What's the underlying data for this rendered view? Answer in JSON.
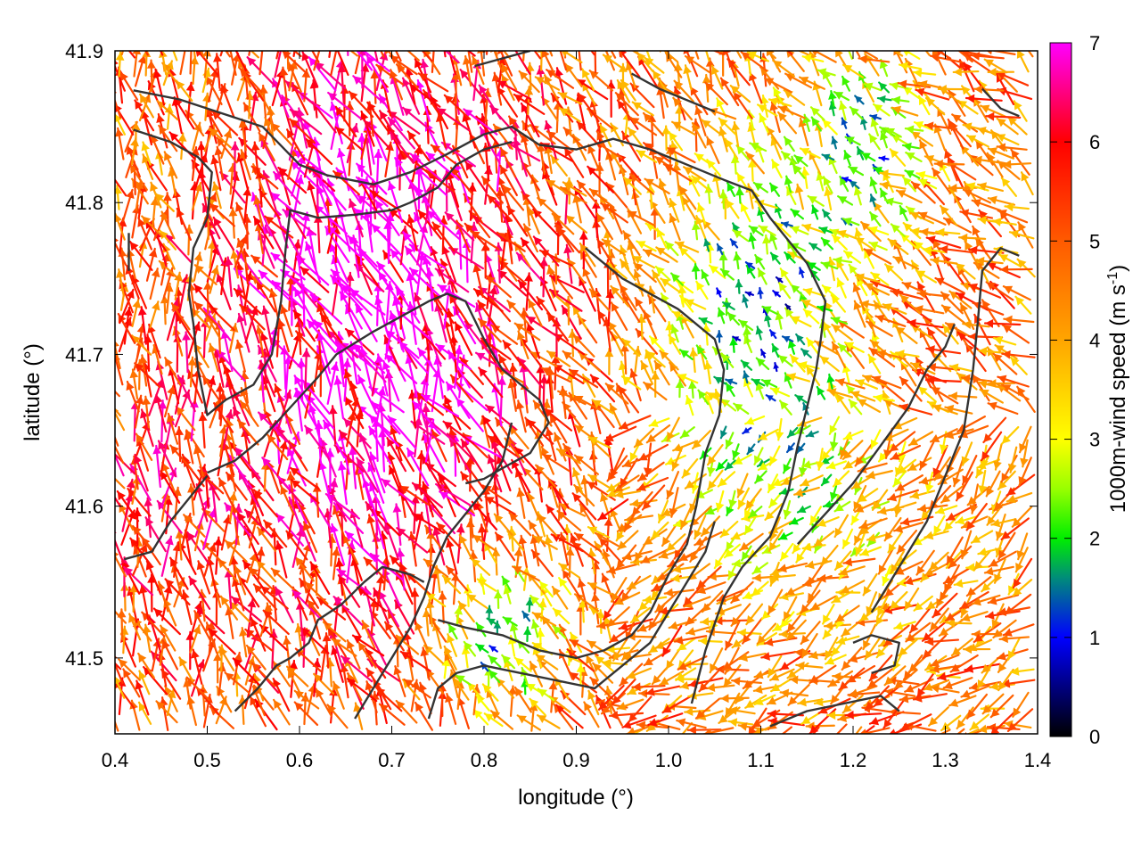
{
  "chart_data": {
    "type": "vector-field",
    "title": "",
    "xlabel": "longitude (°)",
    "ylabel": "latitude (°)",
    "xlim": [
      0.4,
      1.4
    ],
    "ylim": [
      41.45,
      41.9
    ],
    "x_ticks": [
      0.4,
      0.5,
      0.6,
      0.7,
      0.8,
      0.9,
      1.0,
      1.1,
      1.2,
      1.3,
      1.4
    ],
    "x_tick_labels": [
      "0.4",
      "0.5",
      "0.6",
      "0.7",
      "0.8",
      "0.9",
      "1.0",
      "1.1",
      "1.2",
      "1.3",
      "1.4"
    ],
    "y_ticks": [
      41.5,
      41.6,
      41.7,
      41.8,
      41.9
    ],
    "y_tick_labels": [
      "41.5",
      "41.6",
      "41.7",
      "41.8",
      "41.9"
    ],
    "colorbar": {
      "label_main": "1000m-wind speed (m s",
      "label_sup": "-1",
      "label_close": ")",
      "range": [
        0,
        7
      ],
      "ticks": [
        0,
        1,
        2,
        3,
        4,
        5,
        6,
        7
      ],
      "tick_labels": [
        "0",
        "1",
        "2",
        "3",
        "4",
        "5",
        "6",
        "7"
      ],
      "stops": [
        {
          "v": 0.0,
          "color": "#000000"
        },
        {
          "v": 1.0,
          "color": "#0000ff"
        },
        {
          "v": 1.6,
          "color": "#008c7a"
        },
        {
          "v": 2.0,
          "color": "#00ee00"
        },
        {
          "v": 2.5,
          "color": "#99ff00"
        },
        {
          "v": 3.0,
          "color": "#ffff00"
        },
        {
          "v": 4.0,
          "color": "#ffa500"
        },
        {
          "v": 5.0,
          "color": "#ff5a00"
        },
        {
          "v": 6.0,
          "color": "#ff0000"
        },
        {
          "v": 7.0,
          "color": "#ff00ff"
        }
      ]
    },
    "contour_color": "#333333",
    "contours": [
      [
        [
          0.42,
          41.874
        ],
        [
          0.47,
          41.868
        ],
        [
          0.52,
          41.858
        ],
        [
          0.56,
          41.85
        ],
        [
          0.6,
          41.825
        ],
        [
          0.63,
          41.818
        ],
        [
          0.68,
          41.812
        ],
        [
          0.72,
          41.82
        ],
        [
          0.76,
          41.832
        ],
        [
          0.8,
          41.845
        ],
        [
          0.83,
          41.85
        ],
        [
          0.86,
          41.838
        ],
        [
          0.9,
          41.835
        ],
        [
          0.94,
          41.842
        ],
        [
          0.98,
          41.835
        ],
        [
          1.02,
          41.825
        ],
        [
          1.06,
          41.815
        ],
        [
          1.09,
          41.808
        ],
        [
          1.11,
          41.79
        ],
        [
          1.13,
          41.775
        ],
        [
          1.15,
          41.76
        ],
        [
          1.17,
          41.735
        ],
        [
          1.165,
          41.71
        ],
        [
          1.16,
          41.69
        ],
        [
          1.15,
          41.665
        ],
        [
          1.14,
          41.64
        ],
        [
          1.13,
          41.61
        ],
        [
          1.11,
          41.58
        ],
        [
          1.08,
          41.56
        ],
        [
          1.06,
          41.54
        ],
        [
          1.04,
          41.505
        ],
        [
          1.025,
          41.47
        ]
      ],
      [
        [
          0.42,
          41.848
        ],
        [
          0.46,
          41.84
        ],
        [
          0.49,
          41.83
        ],
        [
          0.505,
          41.82
        ],
        [
          0.5,
          41.79
        ],
        [
          0.485,
          41.77
        ],
        [
          0.48,
          41.74
        ],
        [
          0.485,
          41.72
        ],
        [
          0.49,
          41.69
        ],
        [
          0.5,
          41.66
        ],
        [
          0.52,
          41.67
        ],
        [
          0.55,
          41.68
        ],
        [
          0.57,
          41.7
        ],
        [
          0.58,
          41.735
        ],
        [
          0.585,
          41.77
        ],
        [
          0.59,
          41.795
        ],
        [
          0.62,
          41.79
        ],
        [
          0.66,
          41.792
        ],
        [
          0.7,
          41.795
        ],
        [
          0.72,
          41.8
        ],
        [
          0.75,
          41.81
        ],
        [
          0.77,
          41.825
        ],
        [
          0.8,
          41.835
        ],
        [
          0.83,
          41.84
        ]
      ],
      [
        [
          0.5,
          41.622
        ],
        [
          0.53,
          41.63
        ],
        [
          0.56,
          41.645
        ],
        [
          0.59,
          41.665
        ],
        [
          0.62,
          41.685
        ],
        [
          0.64,
          41.7
        ],
        [
          0.68,
          41.715
        ],
        [
          0.71,
          41.725
        ],
        [
          0.74,
          41.735
        ],
        [
          0.76,
          41.74
        ],
        [
          0.78,
          41.735
        ],
        [
          0.8,
          41.71
        ],
        [
          0.82,
          41.69
        ],
        [
          0.84,
          41.68
        ],
        [
          0.86,
          41.67
        ],
        [
          0.87,
          41.655
        ],
        [
          0.85,
          41.635
        ],
        [
          0.82,
          41.625
        ],
        [
          0.8,
          41.618
        ],
        [
          0.78,
          41.615
        ]
      ],
      [
        [
          0.41,
          41.565
        ],
        [
          0.44,
          41.57
        ],
        [
          0.46,
          41.59
        ],
        [
          0.48,
          41.605
        ],
        [
          0.5,
          41.62
        ]
      ],
      [
        [
          0.53,
          41.465
        ],
        [
          0.555,
          41.48
        ],
        [
          0.575,
          41.495
        ],
        [
          0.59,
          41.5
        ],
        [
          0.61,
          41.51
        ],
        [
          0.62,
          41.525
        ],
        [
          0.645,
          41.535
        ],
        [
          0.67,
          41.55
        ],
        [
          0.69,
          41.56
        ],
        [
          0.72,
          41.555
        ],
        [
          0.735,
          41.55
        ]
      ],
      [
        [
          0.66,
          41.46
        ],
        [
          0.68,
          41.48
        ],
        [
          0.7,
          41.5
        ],
        [
          0.72,
          41.52
        ],
        [
          0.735,
          41.54
        ],
        [
          0.745,
          41.56
        ],
        [
          0.76,
          41.58
        ],
        [
          0.78,
          41.595
        ],
        [
          0.8,
          41.61
        ],
        [
          0.82,
          41.63
        ],
        [
          0.83,
          41.655
        ]
      ],
      [
        [
          0.74,
          41.46
        ],
        [
          0.75,
          41.48
        ],
        [
          0.77,
          41.49
        ],
        [
          0.8,
          41.495
        ],
        [
          0.84,
          41.49
        ],
        [
          0.88,
          41.485
        ],
        [
          0.92,
          41.48
        ],
        [
          0.94,
          41.49
        ],
        [
          0.96,
          41.5
        ],
        [
          0.98,
          41.51
        ],
        [
          1.0,
          41.53
        ],
        [
          1.02,
          41.55
        ],
        [
          1.04,
          41.57
        ],
        [
          1.05,
          41.59
        ]
      ],
      [
        [
          0.91,
          41.77
        ],
        [
          0.93,
          41.76
        ],
        [
          0.95,
          41.75
        ],
        [
          0.98,
          41.74
        ],
        [
          1.01,
          41.73
        ],
        [
          1.03,
          41.72
        ],
        [
          1.05,
          41.71
        ],
        [
          1.06,
          41.69
        ],
        [
          1.055,
          41.66
        ],
        [
          1.04,
          41.635
        ],
        [
          1.03,
          41.6
        ],
        [
          1.02,
          41.575
        ],
        [
          1.0,
          41.555
        ],
        [
          0.98,
          41.53
        ],
        [
          0.96,
          41.515
        ],
        [
          0.93,
          41.505
        ],
        [
          0.9,
          41.5
        ],
        [
          0.86,
          41.505
        ],
        [
          0.82,
          41.515
        ],
        [
          0.78,
          41.52
        ],
        [
          0.75,
          41.525
        ]
      ],
      [
        [
          1.11,
          41.455
        ],
        [
          1.15,
          41.465
        ],
        [
          1.19,
          41.47
        ],
        [
          1.23,
          41.475
        ],
        [
          1.25,
          41.465
        ]
      ],
      [
        [
          1.2,
          41.51
        ],
        [
          1.22,
          41.515
        ],
        [
          1.25,
          41.51
        ],
        [
          1.245,
          41.495
        ],
        [
          1.22,
          41.49
        ]
      ],
      [
        [
          1.22,
          41.53
        ],
        [
          1.25,
          41.56
        ],
        [
          1.28,
          41.59
        ],
        [
          1.3,
          41.62
        ],
        [
          1.32,
          41.65
        ],
        [
          1.33,
          41.69
        ],
        [
          1.335,
          41.72
        ],
        [
          1.34,
          41.755
        ],
        [
          1.36,
          41.77
        ],
        [
          1.38,
          41.765
        ]
      ],
      [
        [
          1.14,
          41.575
        ],
        [
          1.17,
          41.595
        ],
        [
          1.2,
          41.615
        ],
        [
          1.23,
          41.64
        ],
        [
          1.26,
          41.665
        ],
        [
          1.28,
          41.69
        ],
        [
          1.3,
          41.705
        ],
        [
          1.31,
          41.72
        ]
      ],
      [
        [
          0.96,
          41.885
        ],
        [
          0.99,
          41.875
        ],
        [
          1.03,
          41.865
        ],
        [
          1.05,
          41.86
        ]
      ],
      [
        [
          1.34,
          41.875
        ],
        [
          1.36,
          41.862
        ],
        [
          1.38,
          41.857
        ]
      ],
      [
        [
          0.415,
          41.78
        ],
        [
          0.415,
          41.755
        ]
      ],
      [
        [
          0.79,
          41.89
        ],
        [
          0.82,
          41.895
        ],
        [
          0.85,
          41.9
        ]
      ]
    ]
  }
}
